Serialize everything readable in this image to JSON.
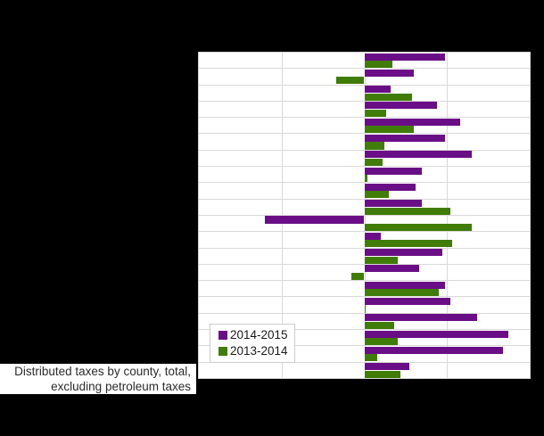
{
  "caption": {
    "line1": "Distributed taxes by county, total,",
    "line2": "excluding petroleum taxes"
  },
  "legend": {
    "items": [
      {
        "label": "2014-2015",
        "color": "#6a0e87"
      },
      {
        "label": "2013-2014",
        "color": "#407c08"
      }
    ]
  },
  "colors": {
    "background": "#000000",
    "plot_background": "#ffffff",
    "gridline": "#d9d9d9",
    "series_2014_2015": "#6a0e87",
    "series_2013_2014": "#407c08"
  },
  "chart_data": {
    "type": "bar",
    "orientation": "horizontal",
    "title": "Distributed taxes by county, total, excluding petroleum taxes",
    "xlabel": "",
    "ylabel": "",
    "xlim": [
      -10,
      10
    ],
    "gridline_step": 5,
    "grid": true,
    "legend_position": "inside-bottom-left",
    "tick_labels_visible": false,
    "category_labels_visible": false,
    "categories": [
      "",
      "",
      "",
      "",
      "",
      "",
      "",
      "",
      "",
      "",
      "",
      "",
      "",
      "",
      "",
      "",
      "",
      "",
      "",
      ""
    ],
    "series": [
      {
        "name": "2014-2015",
        "color": "#6a0e87",
        "values": [
          4.9,
          3.0,
          1.6,
          4.4,
          5.8,
          4.9,
          6.5,
          3.5,
          3.1,
          3.5,
          -6.0,
          1.0,
          4.7,
          3.3,
          4.9,
          5.2,
          6.8,
          8.7,
          8.4,
          2.7
        ]
      },
      {
        "name": "2013-2014",
        "color": "#407c08",
        "values": [
          1.7,
          -1.7,
          2.9,
          1.3,
          3.0,
          1.2,
          1.1,
          0.2,
          1.5,
          5.2,
          6.5,
          5.3,
          2.0,
          -0.8,
          4.5,
          0.1,
          1.8,
          2.0,
          0.8,
          2.2
        ]
      }
    ]
  }
}
